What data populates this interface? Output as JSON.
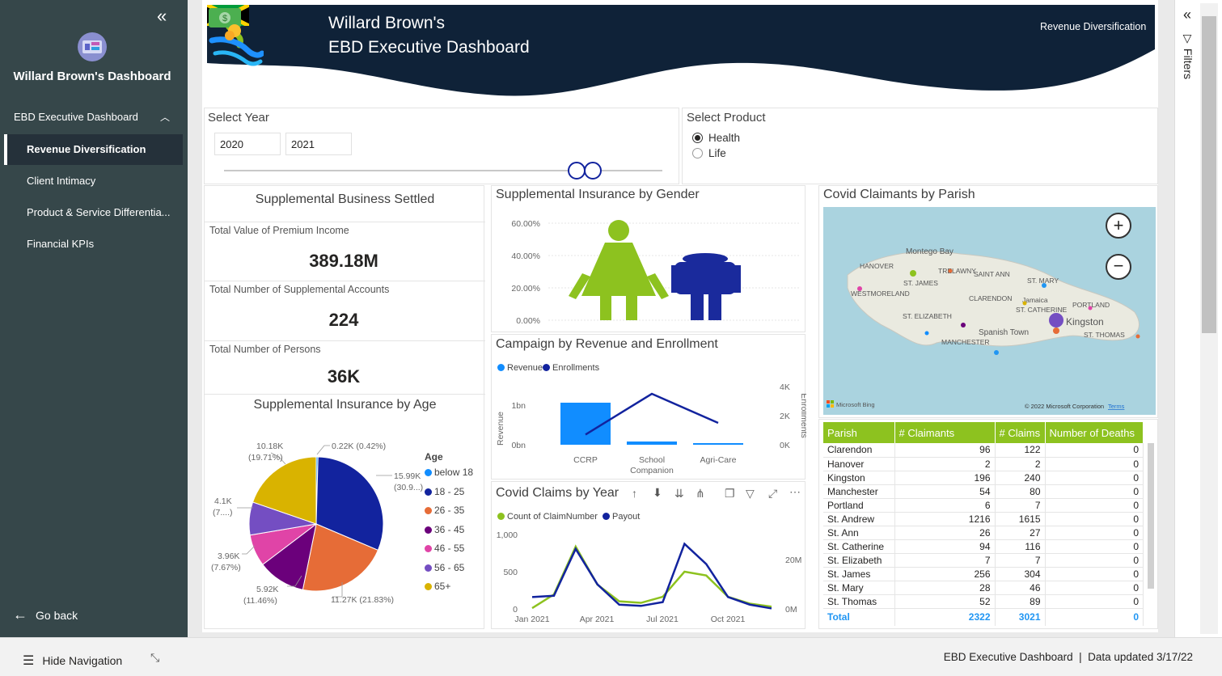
{
  "nav": {
    "title": "Willard Brown's Dashboard",
    "group": "EBD Executive Dashboard",
    "items": [
      {
        "label": "Revenue Diversification",
        "active": true
      },
      {
        "label": "Client Intimacy",
        "active": false
      },
      {
        "label": "Product & Service Differentia...",
        "active": false
      },
      {
        "label": "Financial KPIs",
        "active": false
      }
    ],
    "go_back": "Go back"
  },
  "banner": {
    "title_line1": "Willard Brown's",
    "title_line2": "EBD Executive Dashboard",
    "page_label": "Revenue Diversification",
    "colors": {
      "navy": "#0f2238",
      "green": "#8dc21f",
      "blue": "#1e90ff"
    }
  },
  "year_slicer": {
    "label": "Select Year",
    "from": "2020",
    "to": "2021"
  },
  "product_slicer": {
    "label": "Select Product",
    "options": [
      "Health",
      "Life"
    ],
    "selected": "Health"
  },
  "kpis": {
    "title": "Supplemental Business Settled",
    "premium_label": "Total Value of Premium Income",
    "premium_value": "389.18M",
    "accounts_label": "Total Number of Supplemental Accounts",
    "accounts_value": "224",
    "persons_label": "Total Number of Persons",
    "persons_value": "36K"
  },
  "gender_chart": {
    "title": "Supplemental Insurance by Gender",
    "y_ticks": [
      "60.00%",
      "40.00%",
      "20.00%",
      "0.00%"
    ],
    "colors": {
      "female": "#8dc21f",
      "male": "#1a2a9c"
    }
  },
  "campaign_chart": {
    "title": "Campaign by Revenue and Enrollment",
    "legend": [
      "Revenue",
      "Enrollments"
    ],
    "ylabel_left": "Revenue",
    "ylabel_right": "Enrollments",
    "y_left_ticks": [
      "1bn",
      "0bn"
    ],
    "y_right_ticks": [
      "4K",
      "2K",
      "0K"
    ],
    "categories": [
      "CCRP",
      "School Companion",
      "Agri-Care"
    ]
  },
  "claims_chart": {
    "title": "Covid Claims by Year",
    "legend": [
      "Count of ClaimNumber",
      "Payout"
    ],
    "y_left_ticks": [
      "1,000",
      "500",
      "0"
    ],
    "y_right_ticks": [
      "20M",
      "0M"
    ],
    "x_ticks": [
      "Jan 2021",
      "Apr 2021",
      "Jul 2021",
      "Oct 2021"
    ]
  },
  "age_chart": {
    "title": "Supplemental Insurance by Age",
    "legend_title": "Age",
    "labels": {
      "a": "0.22K (0.42%)",
      "b1": "15.99K",
      "b2": "(30.9...)",
      "c": "11.27K (21.83%)",
      "d1": "5.92K",
      "d2": "(11.46%)",
      "e1": "3.96K",
      "e2": "(7.67%)",
      "f1": "4.1K",
      "f2": "(7....)",
      "g1": "10.18K",
      "g2": "(19.71%)"
    }
  },
  "map": {
    "title": "Covid Claimants by Parish",
    "labels": [
      "Montego Bay",
      "HANOVER",
      "TRELAWNY",
      "SAINT ANN",
      "ST. MARY",
      "ST. JAMES",
      "WESTMORELAND",
      "CLARENDON",
      "Jamaica",
      "ST. CATHERINE",
      "PORTLAND",
      "Kingston",
      "ST. ELIZABETH",
      "Spanish Town",
      "ST. THOMAS",
      "MANCHESTER"
    ],
    "bing": "Microsoft Bing",
    "copyright": "© 2022 Microsoft Corporation",
    "terms": "Terms"
  },
  "parish_table": {
    "headers": [
      "Parish",
      "# Claimants",
      "# Claims",
      "Number of Deaths"
    ],
    "rows": [
      [
        "Clarendon",
        "96",
        "122",
        "0"
      ],
      [
        "Hanover",
        "2",
        "2",
        "0"
      ],
      [
        "Kingston",
        "196",
        "240",
        "0"
      ],
      [
        "Manchester",
        "54",
        "80",
        "0"
      ],
      [
        "Portland",
        "6",
        "7",
        "0"
      ],
      [
        "St. Andrew",
        "1216",
        "1615",
        "0"
      ],
      [
        "St. Ann",
        "26",
        "27",
        "0"
      ],
      [
        "St. Catherine",
        "94",
        "116",
        "0"
      ],
      [
        "St. Elizabeth",
        "7",
        "7",
        "0"
      ],
      [
        "St. James",
        "256",
        "304",
        "0"
      ],
      [
        "St. Mary",
        "28",
        "46",
        "0"
      ],
      [
        "St. Thomas",
        "52",
        "89",
        "0"
      ]
    ],
    "total": [
      "Total",
      "2322",
      "3021",
      "0"
    ]
  },
  "filters": {
    "label": "Filters"
  },
  "footer": {
    "hide_nav": "Hide Navigation",
    "right": "EBD Executive Dashboard  |  Data updated 3/17/22"
  },
  "chart_data": [
    {
      "type": "pie",
      "title": "Supplemental Insurance by Age",
      "categories": [
        "below 18",
        "18 - 25",
        "26 - 35",
        "36 - 45",
        "46 - 55",
        "56 - 65",
        "65+"
      ],
      "values": [
        0.22,
        15.99,
        11.27,
        5.92,
        3.96,
        4.1,
        10.18
      ],
      "colors": [
        "#118dff",
        "#12239e",
        "#e66c37",
        "#6b007b",
        "#e044a7",
        "#744ec2",
        "#d9b300"
      ]
    },
    {
      "type": "bar",
      "title": "Campaign by Revenue and Enrollment",
      "categories": [
        "CCRP",
        "School Companion",
        "Agri-Care"
      ],
      "series": [
        {
          "name": "Revenue",
          "type": "bar",
          "values": [
            1.3,
            0.1,
            0.05
          ],
          "color": "#118dff"
        },
        {
          "name": "Enrollments",
          "type": "line",
          "values": [
            700,
            3500,
            1500
          ],
          "color": "#12239e"
        }
      ],
      "ylim_left": [
        0,
        1.8
      ],
      "ylim_right": [
        0,
        4000
      ]
    },
    {
      "type": "line",
      "title": "Covid Claims by Year",
      "x": [
        "2021-01",
        "2021-02",
        "2021-03",
        "2021-04",
        "2021-05",
        "2021-06",
        "2021-07",
        "2021-08",
        "2021-09",
        "2021-10",
        "2021-11",
        "2021-12"
      ],
      "series": [
        {
          "name": "Count of ClaimNumber",
          "values": [
            20,
            200,
            830,
            330,
            110,
            90,
            170,
            500,
            450,
            170,
            80,
            40
          ],
          "color": "#8dc21f"
        },
        {
          "name": "Payout",
          "values": [
            5,
            5.5,
            24,
            10,
            2,
            1.5,
            3,
            26,
            18,
            5,
            2,
            0.5
          ],
          "color": "#12239e"
        }
      ],
      "ylim_left": [
        0,
        1000
      ],
      "ylim_right": [
        0,
        30
      ]
    },
    {
      "type": "bar",
      "title": "Supplemental Insurance by Gender",
      "categories": [
        "Female",
        "Male"
      ],
      "values": [
        55,
        42
      ],
      "ylim": [
        0,
        60
      ]
    }
  ]
}
